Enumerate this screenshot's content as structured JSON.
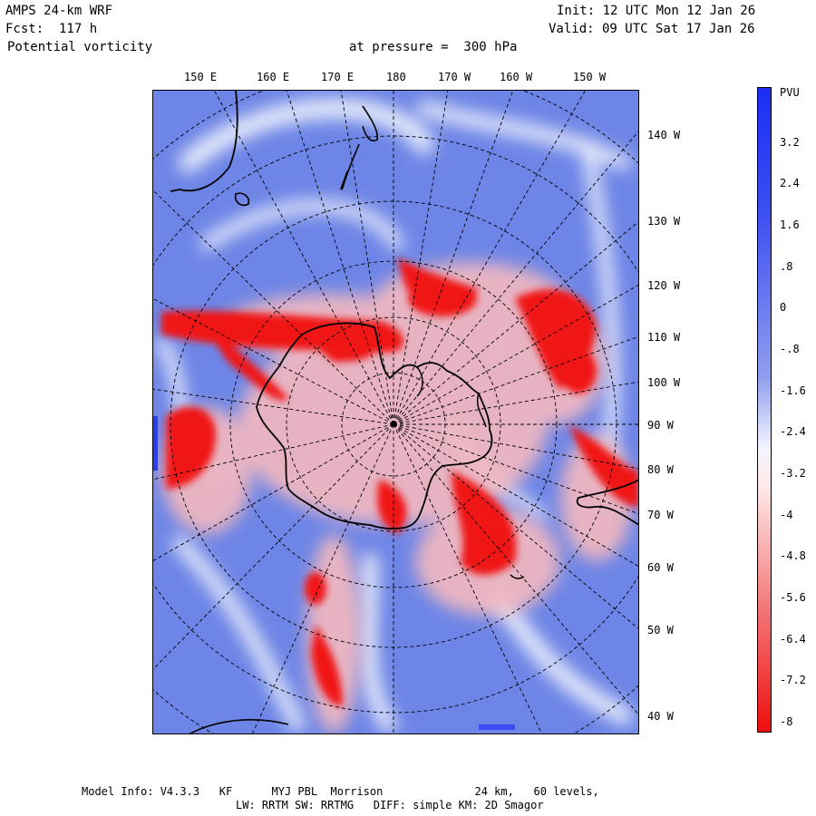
{
  "header": {
    "model": "AMPS 24-km WRF",
    "forecast": "Fcst:  117 h",
    "field": "Potential vorticity",
    "level": "at pressure =  300 hPa",
    "init": "Init: 12 UTC Mon 12 Jan 26",
    "valid": "Valid: 09 UTC Sat 17 Jan 26"
  },
  "map": {
    "top_longitudes": [
      "150 E",
      "160 E",
      "170 E",
      "180",
      "170 W",
      "160 W",
      "150 W"
    ],
    "right_longitudes": [
      "140 W",
      "130 W",
      "120 W",
      "110 W",
      "100 W",
      "90 W",
      "80 W",
      "70 W",
      "60 W",
      "50 W",
      "40 W"
    ],
    "colors": {
      "positive": "#2a3cf0",
      "negative": "#f01010",
      "background": "#6f86e8"
    }
  },
  "colorbar": {
    "unit": "PVU",
    "ticks": [
      "3.2",
      "2.4",
      "1.6",
      ".8",
      "0",
      "-.8",
      "-1.6",
      "-2.4",
      "-3.2",
      "-4",
      "-4.8",
      "-5.6",
      "-6.4",
      "-7.2",
      "-8"
    ],
    "min": -8,
    "max": 4
  },
  "footer": {
    "line1": "Model Info: V4.3.3   KF      MYJ PBL  Morrison              24 km,   60 levels,",
    "line2": "LW: RRTM SW: RRTMG   DIFF: simple KM: 2D Smagor"
  }
}
